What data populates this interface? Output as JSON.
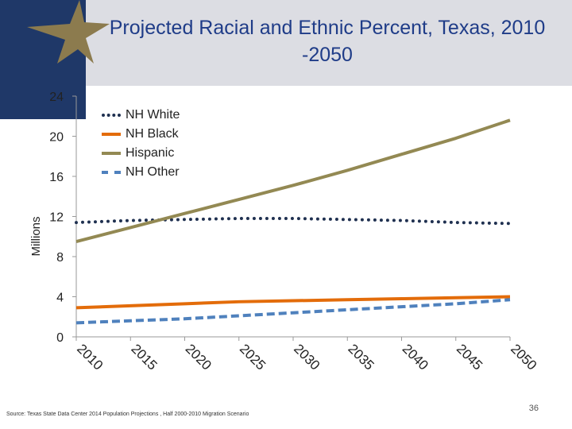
{
  "slide": {
    "title": "Projected Racial and Ethnic Percent, Texas, 2010 -2050",
    "source": "Source: Texas State Data Center 2014 Population Projections , Half 2000-2010 Migration Scenario",
    "page_number": "36"
  },
  "colors": {
    "nh_white": "#1f3050",
    "nh_black": "#e36c0a",
    "hispanic": "#938953",
    "nh_other": "#4f81bd",
    "title": "#1f3c88",
    "header_band": "#dcdde3",
    "dark_block": "#1f3868",
    "star": "#8c7b4e"
  },
  "chart_data": {
    "type": "line",
    "ylabel": "Millions",
    "xlabel": "",
    "ylim": [
      0,
      24
    ],
    "yticks": [
      0,
      4,
      8,
      12,
      16,
      20,
      24
    ],
    "x": [
      "2010",
      "2015",
      "2020",
      "2025",
      "2030",
      "2035",
      "2040",
      "2045",
      "2050"
    ],
    "legend_position": "top-left",
    "grid": false,
    "series": [
      {
        "name": "NH White",
        "style": "dotted",
        "values": [
          11.4,
          11.6,
          11.7,
          11.8,
          11.8,
          11.7,
          11.6,
          11.4,
          11.3
        ]
      },
      {
        "name": "NH Black",
        "style": "solid",
        "values": [
          2.9,
          3.1,
          3.3,
          3.5,
          3.6,
          3.7,
          3.8,
          3.9,
          4.0
        ]
      },
      {
        "name": "Hispanic",
        "style": "solid",
        "values": [
          9.5,
          10.9,
          12.3,
          13.7,
          15.1,
          16.6,
          18.2,
          19.8,
          21.6
        ]
      },
      {
        "name": "NH Other",
        "style": "dashed",
        "values": [
          1.4,
          1.6,
          1.8,
          2.1,
          2.4,
          2.7,
          3.0,
          3.3,
          3.7
        ]
      }
    ]
  }
}
